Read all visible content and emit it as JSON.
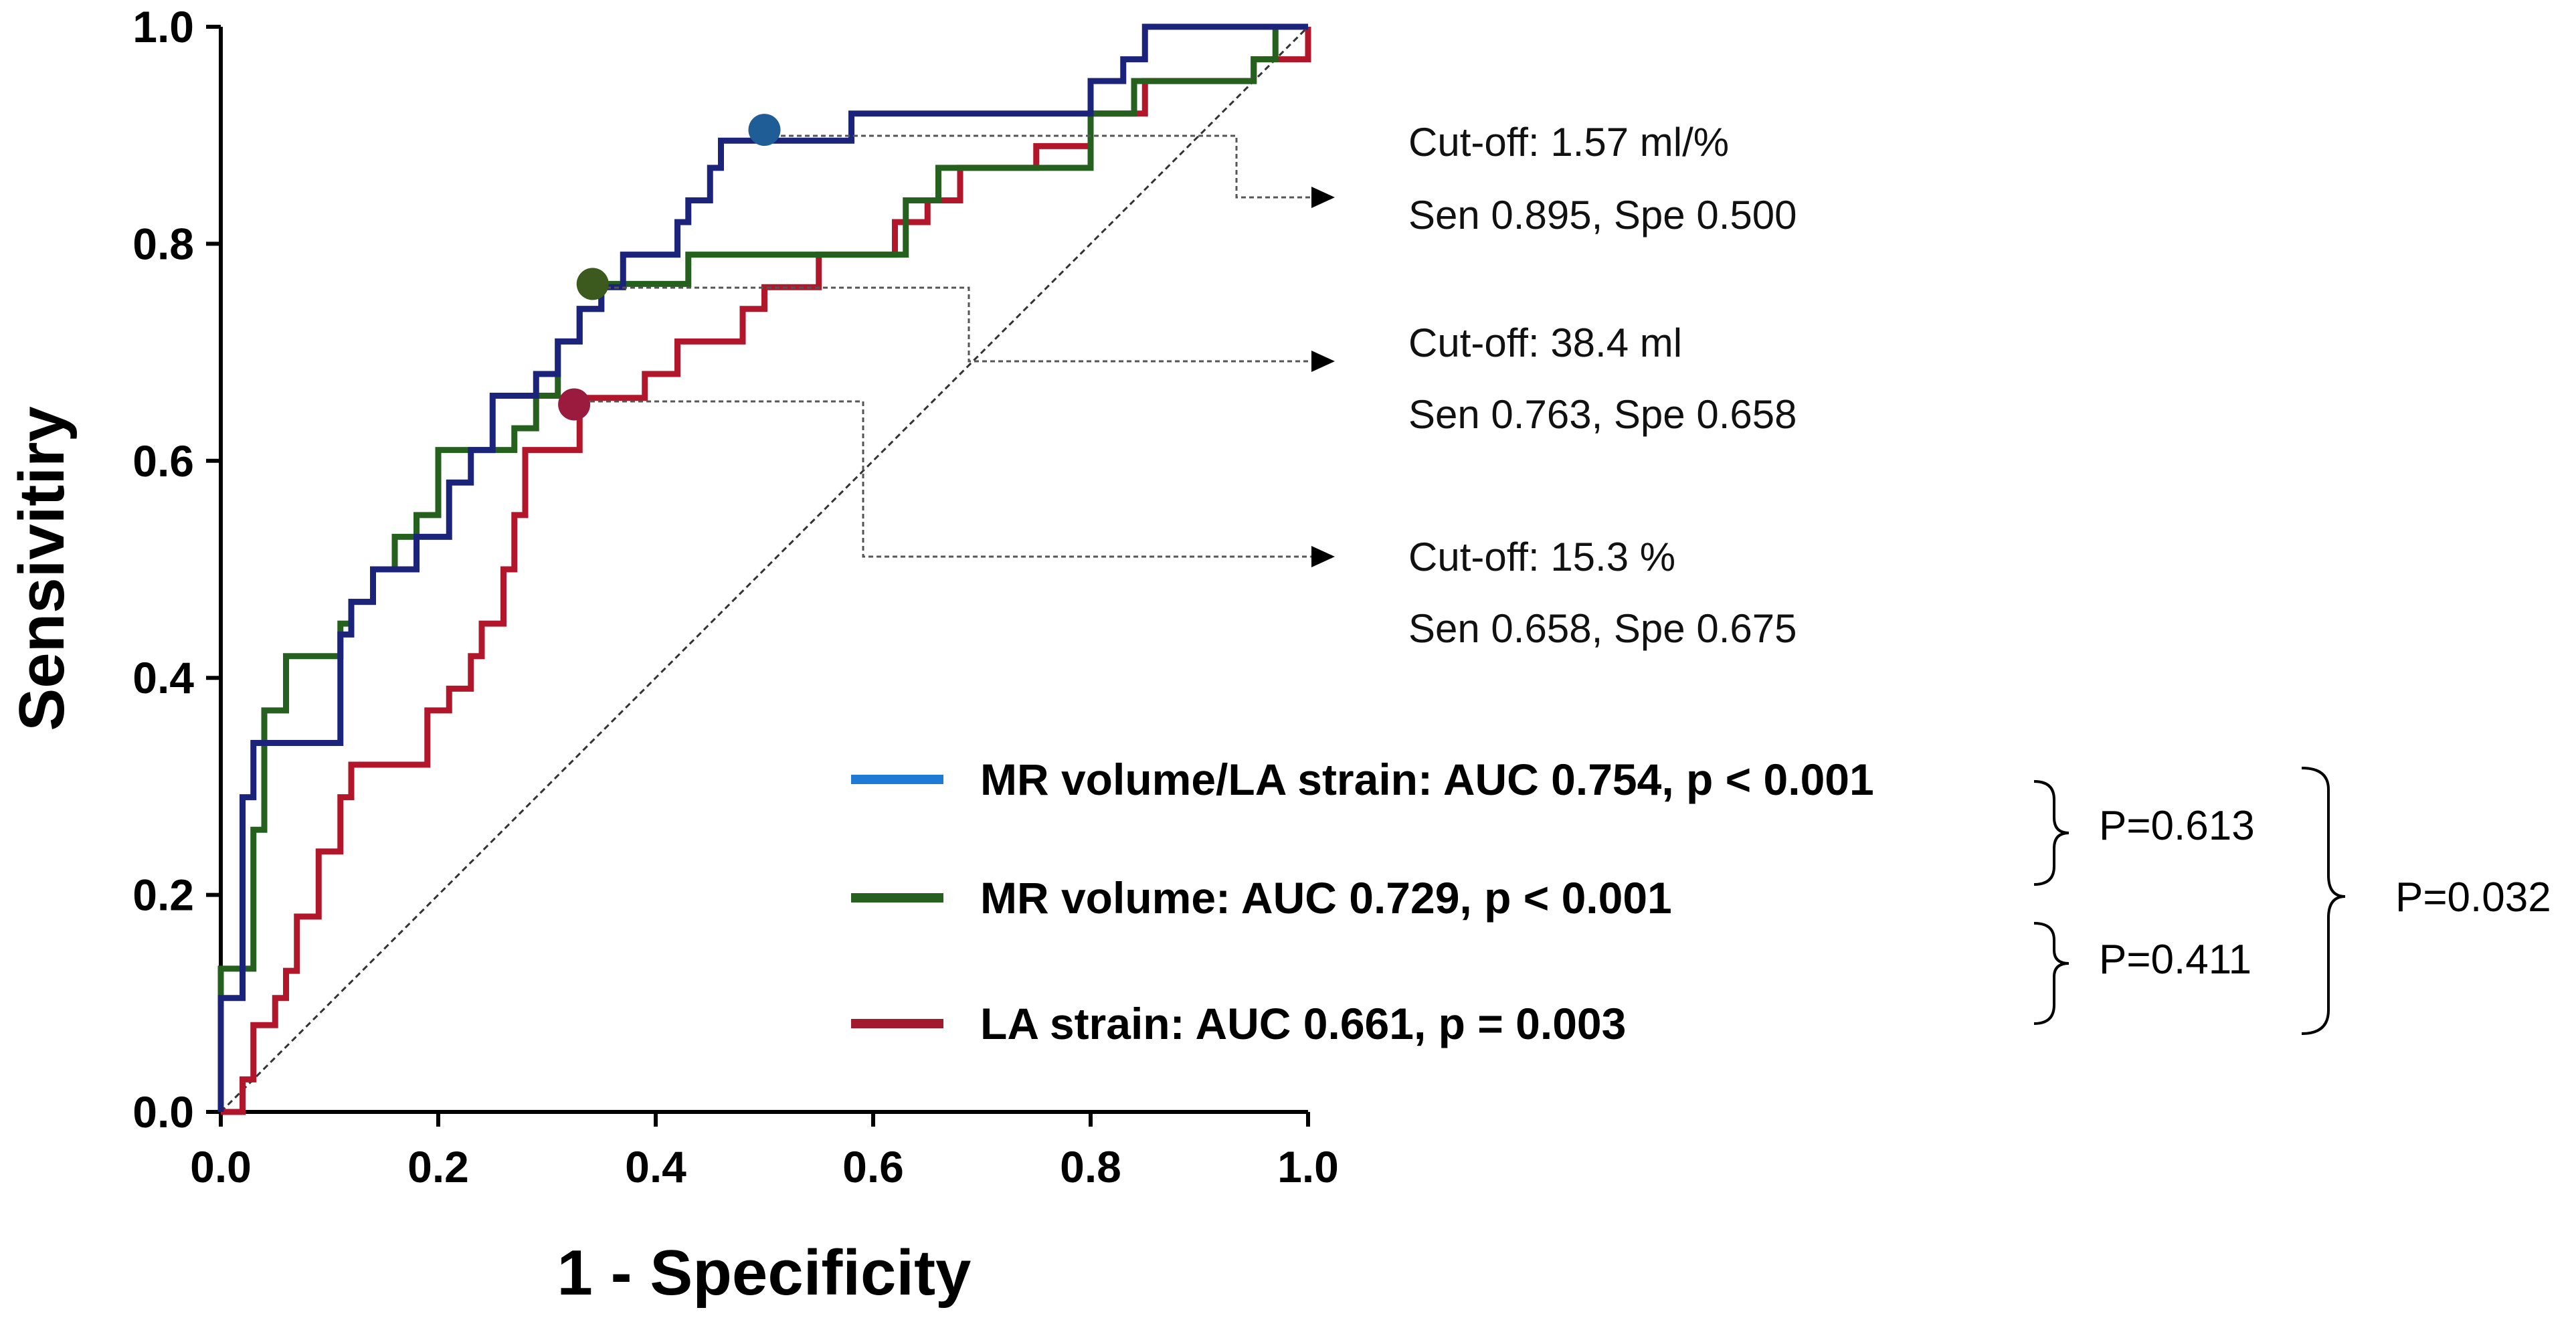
{
  "chart_data": {
    "type": "line",
    "title": "",
    "xlabel": "1 - Specificity",
    "ylabel": "Sensivitiry",
    "xlim": [
      0,
      1
    ],
    "ylim": [
      0,
      1
    ],
    "xticks": [
      "0.0",
      "0.2",
      "0.4",
      "0.6",
      "0.8",
      "1.0"
    ],
    "yticks": [
      "0.0",
      "0.2",
      "0.4",
      "0.6",
      "0.8",
      "1.0"
    ],
    "grid": false,
    "reference_line": {
      "x": [
        0,
        1
      ],
      "y": [
        0,
        1
      ],
      "style": "dashed"
    },
    "series": [
      {
        "name": "MR volume/LA strain",
        "color": "#1c237a",
        "legend_color": "#1f7ad6",
        "x": [
          0,
          0,
          0.02,
          0.02,
          0.03,
          0.03,
          0.05,
          0.05,
          0.11,
          0.11,
          0.12,
          0.12,
          0.14,
          0.14,
          0.18,
          0.18,
          0.21,
          0.21,
          0.23,
          0.23,
          0.25,
          0.25,
          0.26,
          0.26,
          0.29,
          0.29,
          0.31,
          0.31,
          0.33,
          0.33,
          0.35,
          0.35,
          0.37,
          0.37,
          0.4,
          0.4,
          0.42,
          0.42,
          0.43,
          0.43,
          0.45,
          0.45,
          0.46,
          0.46,
          0.48,
          0.48,
          0.5,
          0.5,
          0.58,
          0.58,
          0.62,
          0.62,
          0.8,
          0.8,
          0.83,
          0.83,
          0.85,
          0.85,
          1.0,
          1.0
        ],
        "y": [
          0,
          0.105,
          0.105,
          0.29,
          0.29,
          0.34,
          0.34,
          0.34,
          0.34,
          0.44,
          0.44,
          0.47,
          0.47,
          0.5,
          0.5,
          0.53,
          0.53,
          0.58,
          0.58,
          0.61,
          0.61,
          0.66,
          0.66,
          0.66,
          0.66,
          0.68,
          0.68,
          0.71,
          0.71,
          0.74,
          0.74,
          0.76,
          0.76,
          0.79,
          0.79,
          0.79,
          0.79,
          0.82,
          0.82,
          0.84,
          0.84,
          0.87,
          0.87,
          0.895,
          0.895,
          0.895,
          0.895,
          0.895,
          0.895,
          0.92,
          0.92,
          0.92,
          0.92,
          0.95,
          0.95,
          0.97,
          0.97,
          1.0,
          1.0,
          1.0
        ]
      },
      {
        "name": "MR volume",
        "color": "#25601f",
        "legend_color": "#25601f",
        "x": [
          0,
          0,
          0.03,
          0.03,
          0.04,
          0.04,
          0.06,
          0.06,
          0.11,
          0.11,
          0.12,
          0.12,
          0.14,
          0.14,
          0.16,
          0.16,
          0.18,
          0.18,
          0.2,
          0.2,
          0.27,
          0.27,
          0.29,
          0.29,
          0.31,
          0.31,
          0.33,
          0.33,
          0.35,
          0.35,
          0.4,
          0.4,
          0.41,
          0.41,
          0.43,
          0.43,
          0.5,
          0.5,
          0.63,
          0.63,
          0.66,
          0.66,
          0.8,
          0.8,
          0.84,
          0.84,
          0.95,
          0.95,
          0.97,
          0.97,
          1.0,
          1.0
        ],
        "y": [
          0,
          0.132,
          0.132,
          0.26,
          0.26,
          0.37,
          0.37,
          0.42,
          0.42,
          0.45,
          0.45,
          0.47,
          0.47,
          0.5,
          0.5,
          0.53,
          0.53,
          0.55,
          0.55,
          0.61,
          0.61,
          0.63,
          0.63,
          0.66,
          0.66,
          0.71,
          0.71,
          0.74,
          0.74,
          0.763,
          0.763,
          0.763,
          0.763,
          0.763,
          0.763,
          0.79,
          0.79,
          0.79,
          0.79,
          0.84,
          0.84,
          0.87,
          0.87,
          0.92,
          0.92,
          0.95,
          0.95,
          0.97,
          0.97,
          1.0,
          1.0,
          1.0
        ]
      },
      {
        "name": "LA strain",
        "color": "#b2162b",
        "legend_color": "#a31a2e",
        "x": [
          0,
          0.02,
          0.02,
          0.03,
          0.03,
          0.05,
          0.05,
          0.06,
          0.06,
          0.07,
          0.07,
          0.09,
          0.09,
          0.11,
          0.11,
          0.12,
          0.12,
          0.19,
          0.19,
          0.21,
          0.21,
          0.23,
          0.23,
          0.24,
          0.24,
          0.26,
          0.26,
          0.27,
          0.27,
          0.28,
          0.28,
          0.33,
          0.33,
          0.39,
          0.39,
          0.42,
          0.42,
          0.48,
          0.48,
          0.5,
          0.5,
          0.53,
          0.53,
          0.55,
          0.55,
          0.62,
          0.62,
          0.65,
          0.65,
          0.68,
          0.68,
          0.72,
          0.72,
          0.75,
          0.75,
          0.8,
          0.8,
          0.85,
          0.85,
          0.95,
          0.95,
          1.0,
          1.0
        ],
        "y": [
          0,
          0,
          0.03,
          0.03,
          0.08,
          0.08,
          0.105,
          0.105,
          0.13,
          0.13,
          0.18,
          0.18,
          0.24,
          0.24,
          0.29,
          0.29,
          0.32,
          0.32,
          0.37,
          0.37,
          0.39,
          0.39,
          0.42,
          0.42,
          0.45,
          0.45,
          0.5,
          0.5,
          0.55,
          0.55,
          0.61,
          0.61,
          0.658,
          0.658,
          0.68,
          0.68,
          0.71,
          0.71,
          0.74,
          0.74,
          0.76,
          0.76,
          0.76,
          0.76,
          0.79,
          0.79,
          0.82,
          0.82,
          0.84,
          0.84,
          0.87,
          0.87,
          0.87,
          0.87,
          0.89,
          0.89,
          0.92,
          0.92,
          0.95,
          0.95,
          0.97,
          0.97,
          1.0
        ]
      }
    ],
    "cutoff_points": [
      {
        "series": "MR volume/LA strain",
        "x": 0.5,
        "y": 0.905,
        "color": "#1f5d96",
        "line1": "Cut-off:  1.57 ml/%",
        "line2": "Sen 0.895, Spe 0.500"
      },
      {
        "series": "MR volume",
        "x": 0.342,
        "y": 0.763,
        "color": "#3c5a1e",
        "line1": "Cut-off:  38.4 ml",
        "line2": "Sen 0.763, Spe 0.658"
      },
      {
        "series": "LA strain",
        "x": 0.325,
        "y": 0.652,
        "color": "#9b1b3f",
        "line1": "Cut-off:  15.3 %",
        "line2": "Sen 0.658, Spe 0.675"
      }
    ],
    "legend": [
      "MR volume/LA strain: AUC 0.754, p < 0.001",
      "MR volume: AUC 0.729, p < 0.001",
      "LA strain: AUC 0.661, p = 0.003"
    ],
    "comparisons": [
      "P=0.613",
      "P=0.411",
      "P=0.032"
    ]
  }
}
